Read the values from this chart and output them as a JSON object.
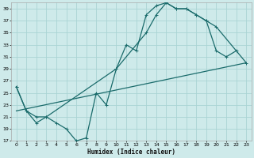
{
  "xlabel": "Humidex (Indice chaleur)",
  "bg_color": "#ceeaea",
  "grid_color": "#aad4d4",
  "line_color": "#1a6b6b",
  "xlim": [
    -0.5,
    23.5
  ],
  "ylim": [
    17,
    40
  ],
  "xticks": [
    0,
    1,
    2,
    3,
    4,
    5,
    6,
    7,
    8,
    9,
    10,
    11,
    12,
    13,
    14,
    15,
    16,
    17,
    18,
    19,
    20,
    21,
    22,
    23
  ],
  "yticks": [
    17,
    19,
    21,
    23,
    25,
    27,
    29,
    31,
    33,
    35,
    37,
    39
  ],
  "curve1_x": [
    0,
    1,
    2,
    3,
    4,
    5,
    6,
    7,
    8,
    9,
    10,
    11,
    12,
    13,
    14,
    15,
    16,
    17,
    18,
    19,
    20,
    21,
    22
  ],
  "curve1_y": [
    26,
    22,
    20,
    21,
    20,
    19,
    17,
    17.5,
    25,
    23,
    29,
    33,
    32,
    38,
    39.5,
    40,
    39,
    39,
    38,
    37,
    32,
    31,
    32
  ],
  "curve2_x": [
    0,
    1,
    2,
    3,
    10,
    13,
    14,
    15,
    16,
    17,
    18,
    19,
    20,
    23
  ],
  "curve2_y": [
    26,
    22,
    21,
    21,
    29,
    35,
    38,
    40,
    39,
    39,
    38,
    37,
    36,
    30
  ],
  "curve3_x": [
    0,
    23
  ],
  "curve3_y": [
    22,
    30
  ],
  "marker_size": 2.5,
  "linewidth": 0.9
}
